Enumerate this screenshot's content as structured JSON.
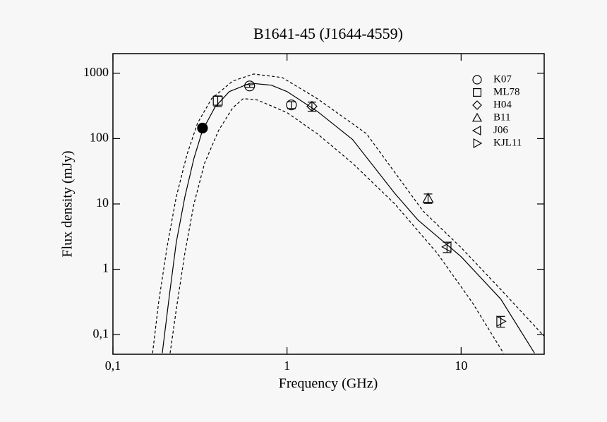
{
  "chart_data": {
    "type": "scatter",
    "title": "B1641-45 (J1644-4559)",
    "xlabel": "Frequency (GHz)",
    "ylabel": "Flux density (mJy)",
    "xscale": "log",
    "yscale": "log",
    "xlim": [
      0.1,
      30
    ],
    "ylim": [
      0.05,
      2000
    ],
    "xticks": [
      {
        "value": 0.1,
        "label": "0,1"
      },
      1,
      10
    ],
    "yticks": [
      {
        "value": 0.1,
        "label": "0,1"
      },
      1,
      10,
      100,
      1000
    ],
    "legend": "upper right",
    "series": [
      {
        "name": "K07",
        "marker": "circle",
        "x": [
          0.61,
          1.06
        ],
        "values": [
          640,
          328
        ],
        "errors": [
          30,
          40
        ]
      },
      {
        "name": "ML78",
        "marker": "square",
        "x": [
          0.4
        ],
        "values": [
          380
        ],
        "errors": [
          70
        ]
      },
      {
        "name": "H04",
        "marker": "diamond",
        "x": [
          1.39
        ],
        "values": [
          312
        ],
        "errors": [
          50
        ]
      },
      {
        "name": "B11",
        "marker": "triangle-up",
        "x": [
          6.46
        ],
        "values": [
          12.2
        ],
        "errors": [
          2
        ]
      },
      {
        "name": "J06",
        "marker": "triangle-left",
        "x": [
          8.3
        ],
        "values": [
          2.2
        ],
        "errors": [
          0.4
        ]
      },
      {
        "name": "KJL11",
        "marker": "triangle-right",
        "x": [
          16.9
        ],
        "values": [
          0.16
        ],
        "errors": [
          0.03
        ]
      },
      {
        "marker": "filled-circle",
        "x": [
          0.327
        ],
        "values": [
          145
        ]
      }
    ],
    "curves": [
      {
        "style": "solid",
        "x": [
          0.192,
          0.211,
          0.231,
          0.259,
          0.292,
          0.327,
          0.386,
          0.466,
          0.615,
          0.815,
          1,
          1.49,
          2.38,
          4.16,
          5.66,
          10,
          16.9,
          26.4
        ],
        "values": [
          0.052,
          0.4,
          2.56,
          12.8,
          50,
          134,
          305,
          525,
          707,
          656,
          525,
          262,
          97,
          14.5,
          5.66,
          1.56,
          0.35,
          0.052
        ]
      },
      {
        "style": "dashed",
        "x": [
          0.169,
          0.183,
          0.205,
          0.231,
          0.266,
          0.306,
          0.369,
          0.488,
          0.643,
          0.938,
          1.49,
          2.86,
          6.04,
          10,
          16.9,
          29.8
        ],
        "values": [
          0.052,
          0.31,
          2.26,
          12.8,
          56.6,
          172,
          410,
          762,
          975,
          861,
          410,
          119,
          7.8,
          2.15,
          0.49,
          0.096
        ]
      },
      {
        "style": "dashed",
        "x": [
          0.213,
          0.231,
          0.259,
          0.292,
          0.336,
          0.405,
          0.488,
          0.561,
          0.676,
          1,
          1.49,
          2.38,
          4.16,
          7.28,
          11.6,
          17.5
        ],
        "values": [
          0.052,
          0.24,
          1.77,
          10,
          42,
          134,
          297,
          410,
          390,
          250,
          119,
          42,
          10,
          1.77,
          0.31,
          0.052
        ]
      }
    ]
  }
}
